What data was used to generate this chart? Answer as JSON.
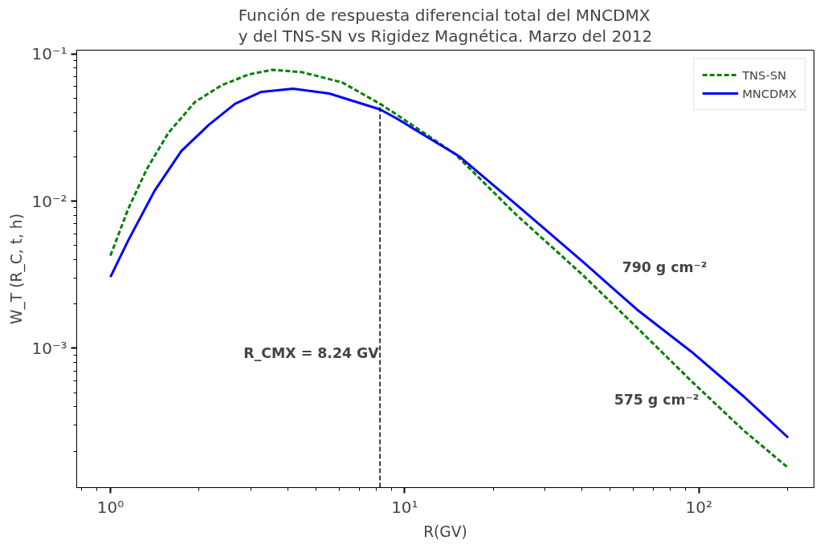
{
  "chart_data": {
    "type": "line",
    "title": "Función de respuesta diferencial total del MNCDMX\ny del TNS-SN vs Rigidez Magnética. Marzo del 2012",
    "xlabel": "R(GV)",
    "ylabel": "W_T (R_C, t, h)",
    "log": "xy",
    "xlim": [
      0.768,
      246
    ],
    "ylim": [
      0.000113,
      0.106
    ],
    "xticks": [
      {
        "value": 1,
        "label": "10⁰"
      },
      {
        "value": 10,
        "label": "10¹"
      },
      {
        "value": 100,
        "label": "10²"
      }
    ],
    "yticks": [
      {
        "value": 0.001,
        "label": "10⁻³"
      },
      {
        "value": 0.01,
        "label": "10⁻²"
      },
      {
        "value": 0.1,
        "label": "10⁻¹"
      }
    ],
    "grid": false,
    "legend": "top right",
    "marker": "none",
    "series": [
      {
        "name": "TNS-SN",
        "color": "#008000",
        "line_style": "dashed",
        "x": [
          1.0,
          1.148,
          1.327,
          1.573,
          1.936,
          2.38,
          2.95,
          3.56,
          4.47,
          6.13,
          8.24,
          9.33,
          14.8,
          23.9,
          40.4,
          61.6,
          94.1,
          142,
          201
        ],
        "values": [
          0.00426,
          0.0088,
          0.0164,
          0.029,
          0.047,
          0.061,
          0.0725,
          0.078,
          0.0752,
          0.064,
          0.0458,
          0.039,
          0.021,
          0.0081,
          0.00313,
          0.00138,
          0.0006,
          0.000276,
          0.000154
        ]
      },
      {
        "name": "MNCDMX",
        "color": "#0000ff",
        "line_style": "solid",
        "x": [
          1.0,
          1.148,
          1.413,
          1.74,
          2.154,
          2.65,
          3.26,
          4.17,
          5.54,
          8.24,
          9.33,
          15.4,
          23.9,
          40.4,
          61.6,
          94.1,
          142,
          201
        ],
        "values": [
          0.00305,
          0.00538,
          0.01175,
          0.0218,
          0.0328,
          0.0458,
          0.0552,
          0.058,
          0.0538,
          0.042,
          0.0367,
          0.02,
          0.0095,
          0.00386,
          0.00183,
          0.00095,
          0.00047,
          0.000247
        ]
      }
    ],
    "ref_lines": [
      {
        "axis": "x",
        "value": 8.24,
        "color": "#000000",
        "line_style": "dashed"
      }
    ],
    "annotations": [
      "R_CMX = 8.24 GV",
      "790 g cm⁻²",
      "575 g cm⁻²"
    ]
  }
}
